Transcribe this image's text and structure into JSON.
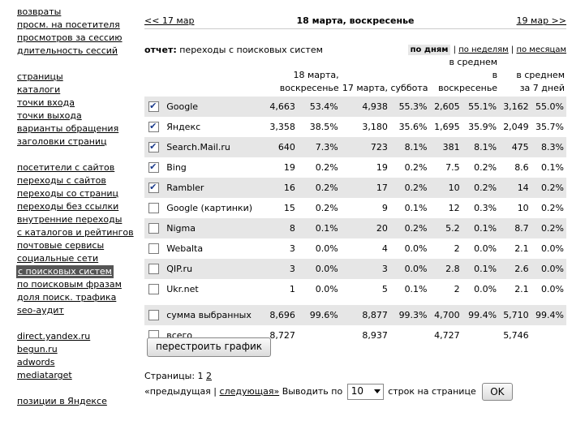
{
  "sidebar": {
    "groups": [
      [
        "",
        "возвраты",
        "просм. на посетителя",
        "просмотров за сессию",
        "длительность сессий"
      ],
      [
        "страницы",
        "каталоги",
        "точки входа",
        "точки выхода",
        "варианты обращения",
        "заголовки страниц"
      ],
      [
        "посетители с сайтов",
        "переходы с сайтов",
        "переходы со страниц",
        "переходы без ссылки",
        "внутренние переходы",
        "с каталогов и рейтингов",
        "почтовые сервисы",
        "социальные сети",
        "с поисковых систем",
        "по поисковым фразам",
        "доля поиск. трафика",
        "seo-аудит"
      ],
      [
        "direct.yandex.ru",
        "begun.ru",
        "adwords",
        "mediatarget"
      ],
      [
        "позиции в Яндексе"
      ]
    ],
    "selected": "с поисковых систем"
  },
  "datenav": {
    "prev": "<< 17 мар",
    "current": "18 марта, воскресенье",
    "next": "19 мар >>"
  },
  "report": {
    "label": "отчет:",
    "title": "переходы с поисковых систем"
  },
  "periods": {
    "day": "по дням",
    "week": "по неделям",
    "month": "по месяцам"
  },
  "columns": {
    "col1": "18 марта, воскресенье",
    "col2": "17 марта, суббота",
    "col3a": "в среднем",
    "col3b": "в воскресенье",
    "col4a": "в среднем",
    "col4b": "за 7 дней"
  },
  "rows": [
    {
      "checked": true,
      "name": "Google",
      "v1": "4,663",
      "p1": "53.4%",
      "v2": "4,938",
      "p2": "55.3%",
      "v3": "2,605",
      "p3": "55.1%",
      "v4": "3,162",
      "p4": "55.0%"
    },
    {
      "checked": true,
      "name": "Яндекс",
      "v1": "3,358",
      "p1": "38.5%",
      "v2": "3,180",
      "p2": "35.6%",
      "v3": "1,695",
      "p3": "35.9%",
      "v4": "2,049",
      "p4": "35.7%"
    },
    {
      "checked": true,
      "name": "Search.Mail.ru",
      "v1": "640",
      "p1": "7.3%",
      "v2": "723",
      "p2": "8.1%",
      "v3": "381",
      "p3": "8.1%",
      "v4": "475",
      "p4": "8.3%"
    },
    {
      "checked": true,
      "name": "Bing",
      "v1": "19",
      "p1": "0.2%",
      "v2": "19",
      "p2": "0.2%",
      "v3": "7.5",
      "p3": "0.2%",
      "v4": "8.6",
      "p4": "0.1%"
    },
    {
      "checked": true,
      "name": "Rambler",
      "v1": "16",
      "p1": "0.2%",
      "v2": "17",
      "p2": "0.2%",
      "v3": "10",
      "p3": "0.2%",
      "v4": "14",
      "p4": "0.2%"
    },
    {
      "checked": false,
      "name": "Google (картинки)",
      "v1": "15",
      "p1": "0.2%",
      "v2": "9",
      "p2": "0.1%",
      "v3": "12",
      "p3": "0.3%",
      "v4": "10",
      "p4": "0.2%"
    },
    {
      "checked": false,
      "name": "Nigma",
      "v1": "8",
      "p1": "0.1%",
      "v2": "20",
      "p2": "0.2%",
      "v3": "5.2",
      "p3": "0.1%",
      "v4": "8.7",
      "p4": "0.2%"
    },
    {
      "checked": false,
      "name": "Webalta",
      "v1": "3",
      "p1": "0.0%",
      "v2": "4",
      "p2": "0.0%",
      "v3": "2",
      "p3": "0.0%",
      "v4": "2.1",
      "p4": "0.0%"
    },
    {
      "checked": false,
      "name": "QIP.ru",
      "v1": "3",
      "p1": "0.0%",
      "v2": "3",
      "p2": "0.0%",
      "v3": "2.8",
      "p3": "0.1%",
      "v4": "2.6",
      "p4": "0.0%"
    },
    {
      "checked": false,
      "name": "Ukr.net",
      "v1": "1",
      "p1": "0.0%",
      "v2": "5",
      "p2": "0.1%",
      "v3": "2",
      "p3": "0.0%",
      "v4": "2.1",
      "p4": "0.0%"
    }
  ],
  "sums": {
    "selected": {
      "name": "сумма выбранных",
      "v1": "8,696",
      "p1": "99.6%",
      "v2": "8,877",
      "p2": "99.3%",
      "v3": "4,700",
      "p3": "99.4%",
      "v4": "5,710",
      "p4": "99.4%"
    },
    "total": {
      "name": "всего",
      "v1": "8,727",
      "v2": "8,937",
      "v3": "4,727",
      "v4": "5,746"
    }
  },
  "rebuild_button": "перестроить график",
  "pagination": {
    "label": "Страницы:",
    "current": "1",
    "next_page": "2"
  },
  "perpage": {
    "prev": "«предыдущая",
    "sep": "|",
    "next": "следующая»",
    "show": "Выводить по",
    "value": "10",
    "suffix": "строк на странице",
    "ok": "OK"
  }
}
